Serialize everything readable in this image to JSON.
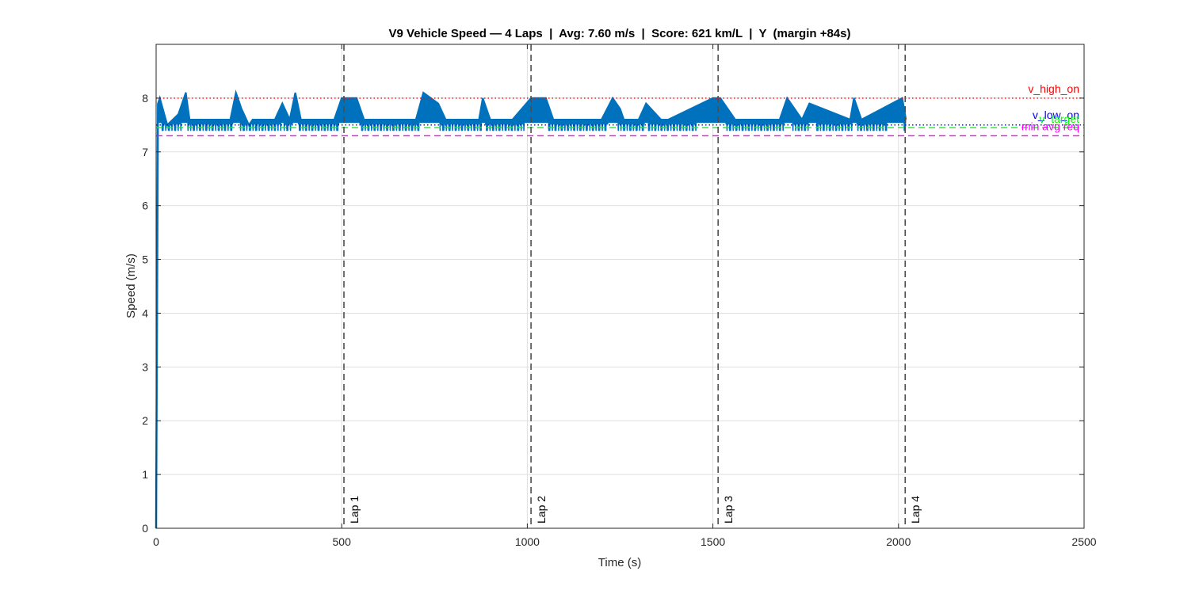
{
  "chart_data": {
    "type": "line",
    "title": "V9 Vehicle Speed — 4 Laps  |  Avg: 7.60 m/s  |  Score: 621 km/L  |  Y  (margin +84s)",
    "xlabel": "Time (s)",
    "ylabel": "Speed (m/s)",
    "xlim": [
      0,
      2500
    ],
    "ylim": [
      0,
      9
    ],
    "xticks": [
      0,
      500,
      1000,
      1500,
      2000,
      2500
    ],
    "yticks": [
      0,
      1,
      2,
      3,
      4,
      5,
      6,
      7,
      8
    ],
    "grid": true,
    "legend": null,
    "series": [
      {
        "name": "Vehicle speed",
        "color": "#0072BD",
        "description": "Rapid ramp from 0 to ~8 m/s at t=0, then pulse-and-glide oscillation between ~7.4 and ~8.0 m/s until ~2020 s",
        "x": [
          0,
          5,
          10,
          30,
          60,
          80,
          90,
          200,
          215,
          230,
          250,
          260,
          320,
          340,
          360,
          375,
          390,
          480,
          500,
          540,
          560,
          700,
          720,
          760,
          780,
          870,
          880,
          900,
          960,
          1010,
          1050,
          1070,
          1200,
          1230,
          1250,
          1260,
          1300,
          1320,
          1360,
          1380,
          1500,
          1520,
          1560,
          1680,
          1700,
          1740,
          1760,
          1870,
          1880,
          1900,
          2010,
          2020
        ],
        "y": [
          0,
          7.9,
          8.0,
          7.5,
          7.7,
          8.1,
          7.6,
          7.6,
          8.1,
          7.8,
          7.5,
          7.6,
          7.6,
          7.9,
          7.6,
          8.1,
          7.6,
          7.6,
          8.0,
          8.0,
          7.6,
          7.6,
          8.1,
          7.9,
          7.6,
          7.6,
          8.0,
          7.6,
          7.6,
          8.0,
          8.0,
          7.6,
          7.6,
          8.0,
          7.8,
          7.6,
          7.6,
          7.9,
          7.6,
          7.6,
          8.0,
          8.0,
          7.6,
          7.6,
          8.0,
          7.6,
          7.9,
          7.6,
          8.0,
          7.6,
          8.0,
          7.6
        ],
        "band_low": 7.4,
        "band_high": 8.0
      }
    ],
    "reference_lines": [
      {
        "label": "v_high_on",
        "y": 8.0,
        "color": "#FF0000",
        "style": "dotted"
      },
      {
        "label": "v_low_on",
        "y": 7.5,
        "color": "#0000FF",
        "style": "dotted"
      },
      {
        "label": "v_target",
        "y": 7.45,
        "color": "#00FF00",
        "style": "dashed"
      },
      {
        "label": "min avg req",
        "y": 7.3,
        "color": "#FF00FF",
        "style": "dashed"
      }
    ],
    "lap_markers": [
      {
        "label": "Lap 1",
        "x": 506
      },
      {
        "label": "Lap 2",
        "x": 1010
      },
      {
        "label": "Lap 3",
        "x": 1514
      },
      {
        "label": "Lap 4",
        "x": 2018
      }
    ],
    "annotations": {
      "avg_speed": "7.60 m/s",
      "score": "621 km/L",
      "laps": 4,
      "status": "Y",
      "margin": "+84s"
    }
  }
}
